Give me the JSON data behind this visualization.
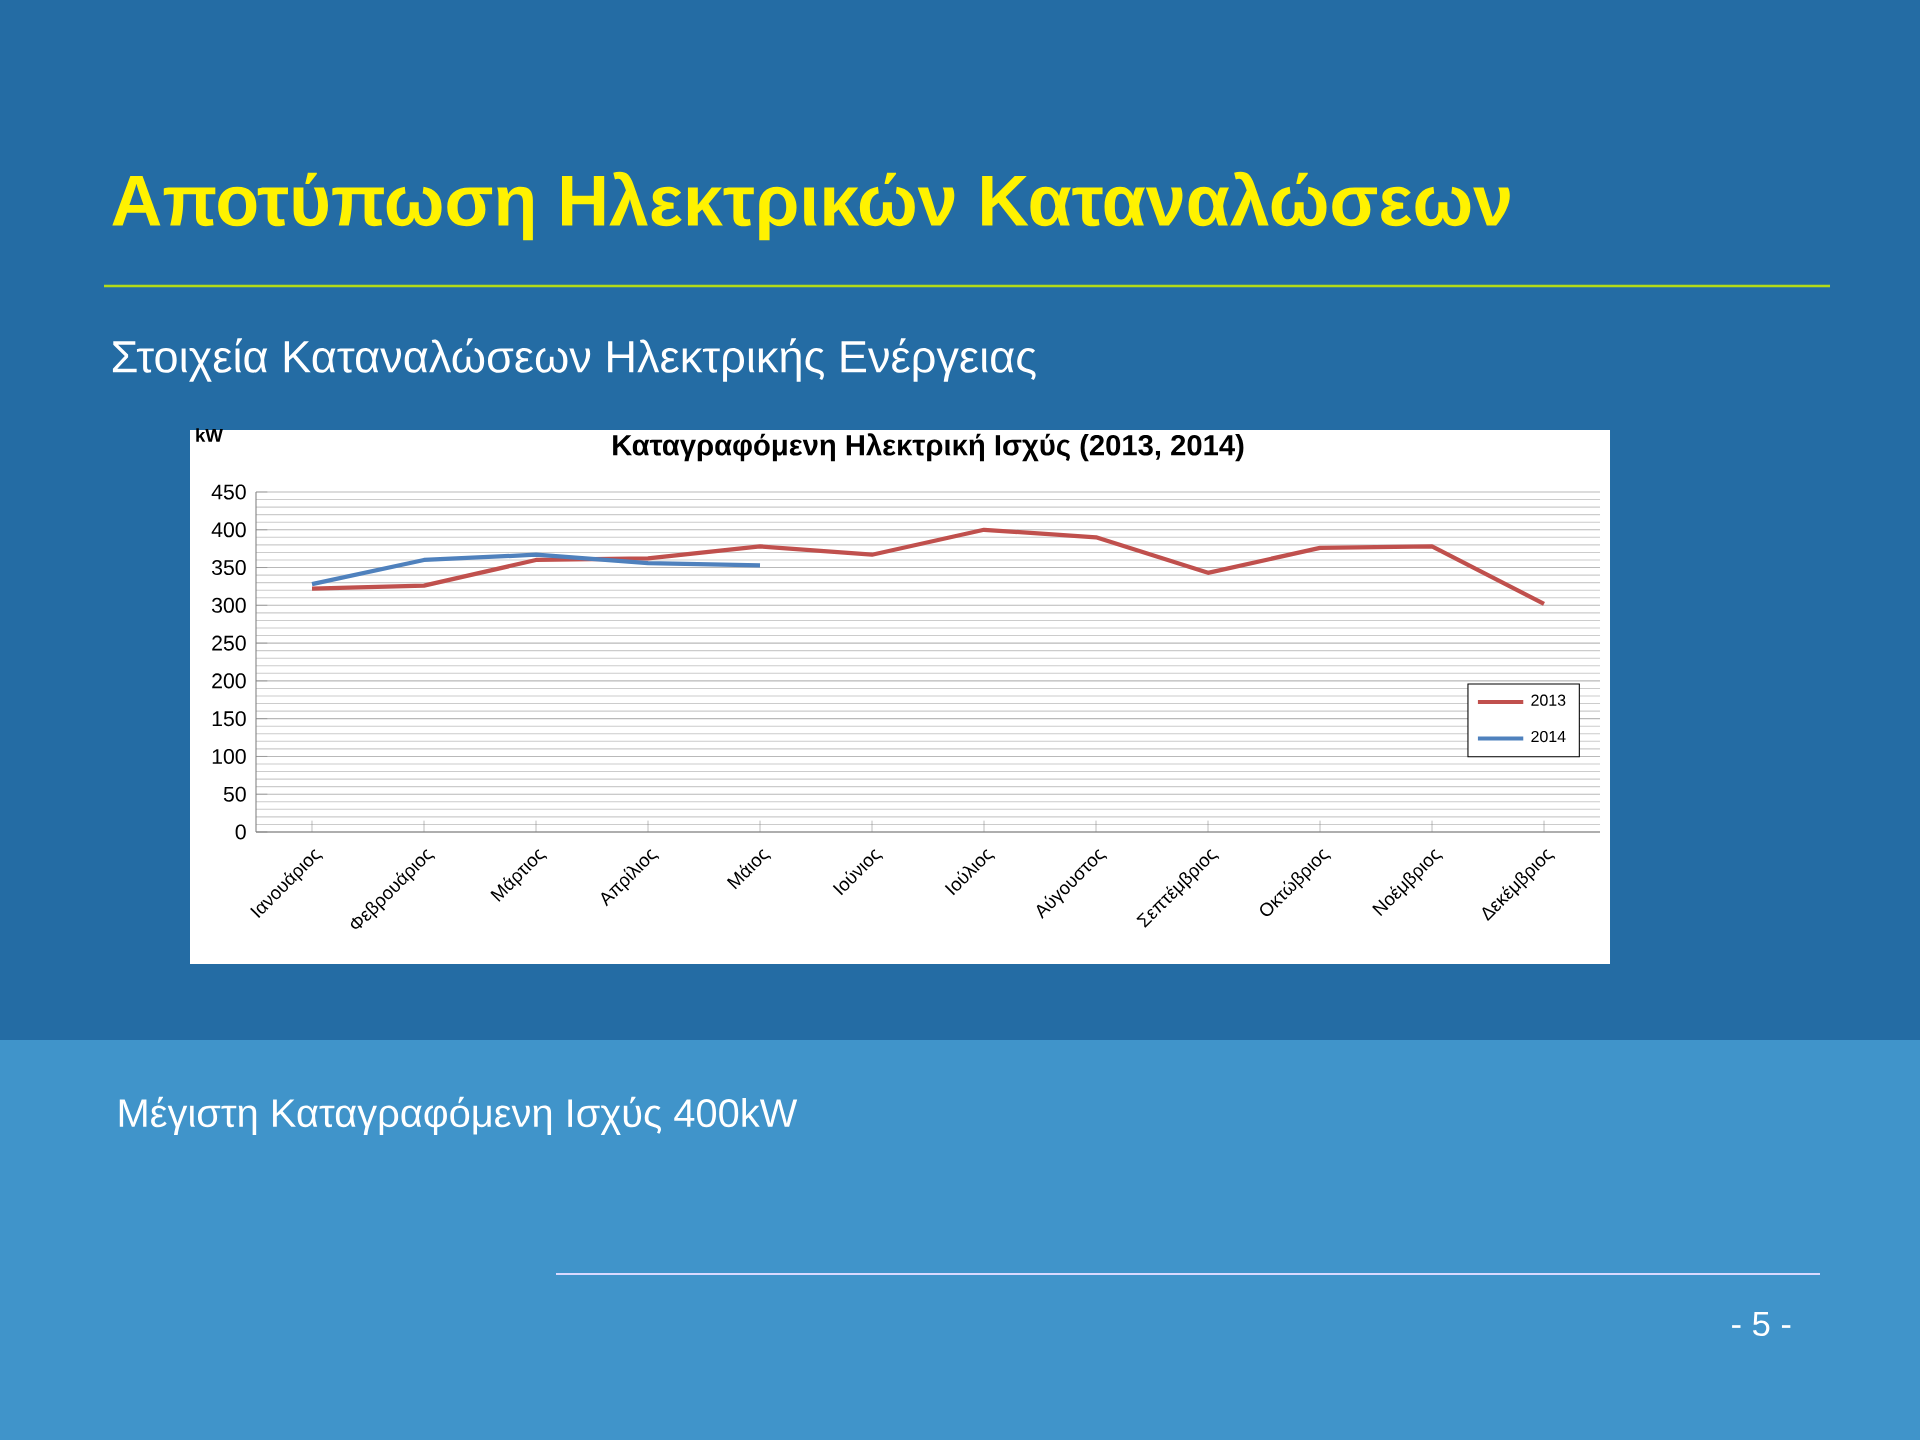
{
  "chart_data": {
    "type": "line",
    "title": "Καταγραφόμενη Ηλεκτρική Ισχύς (2013, 2014)",
    "ylabel": "kW",
    "categories": [
      "Ιανουάριος",
      "Φεβρουάριος",
      "Μάρτιος",
      "Απρίλιος",
      "Μάιος",
      "Ιούνιος",
      "Ιούλιος",
      "Αύγουστος",
      "Σεπτέμβριος",
      "Οκτώβριος",
      "Νοέμβριος",
      "Δεκέμβριος"
    ],
    "series": [
      {
        "name": "2013",
        "color": "#c0504d",
        "values": [
          322,
          326,
          360,
          362,
          378,
          367,
          400,
          390,
          343,
          376,
          378,
          302
        ]
      },
      {
        "name": "2014",
        "color": "#4f81bd",
        "values": [
          328,
          360,
          367,
          356,
          353,
          null,
          null,
          null,
          null,
          null,
          null,
          null
        ]
      }
    ],
    "ylim": [
      0,
      450
    ],
    "yticks": [
      0,
      50,
      100,
      150,
      200,
      250,
      300,
      350,
      400,
      450
    ],
    "grid": "y",
    "legend": "right",
    "marker": "none",
    "line_style": "solid",
    "annotations": [
      "Αποτύπωση Ηλεκτρικών Καταναλώσεων",
      "Στοιχεία Καταναλώσεων Ηλεκτρικής Ενέργειας",
      "Μέγιστη Καταγραφόμενη Ισχύς 400kW",
      "- 5 -"
    ]
  }
}
